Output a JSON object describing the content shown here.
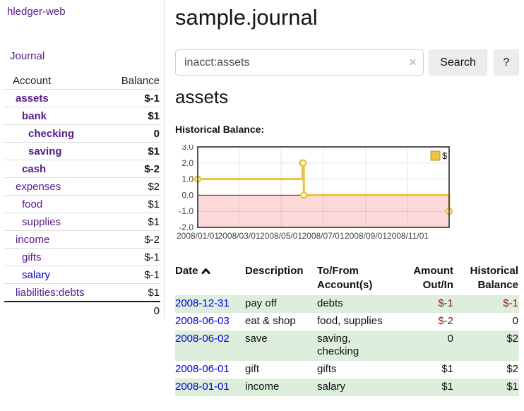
{
  "colors": {
    "purple_link": "#551a8b",
    "blue_link": "#0000dd",
    "negative_strong": "#8b1a1a",
    "negative_muted": "#b26b6b",
    "row_highlight": "#ddeedd",
    "chart_line": "#edc240",
    "chart_negative_region": "#fcdada",
    "chart_zero_line": "#8b0000",
    "chart_border": "#545454"
  },
  "sidebar": {
    "title": "hledger-web",
    "journal_label": "Journal",
    "accounts_table": {
      "headers": {
        "account": "Account",
        "balance": "Balance"
      },
      "rows": [
        {
          "name": "assets",
          "depth": 1,
          "bold": true,
          "balance": "$-1",
          "balance_style": "neg-strong",
          "link": "purple"
        },
        {
          "name": "bank",
          "depth": 2,
          "bold": true,
          "balance": "$1",
          "balance_style": "pos",
          "link": "purple"
        },
        {
          "name": "checking",
          "depth": 3,
          "bold": true,
          "balance": "0",
          "balance_style": "pos",
          "link": "purple"
        },
        {
          "name": "saving",
          "depth": 3,
          "bold": true,
          "balance": "$1",
          "balance_style": "pos",
          "link": "purple"
        },
        {
          "name": "cash",
          "depth": 2,
          "bold": true,
          "balance": "$-2",
          "balance_style": "neg-strong",
          "link": "purple"
        },
        {
          "name": "expenses",
          "depth": 1,
          "bold": false,
          "balance": "$2",
          "balance_style": "pos",
          "link": "purple"
        },
        {
          "name": "food",
          "depth": 2,
          "bold": false,
          "balance": "$1",
          "balance_style": "pos",
          "link": "purple"
        },
        {
          "name": "supplies",
          "depth": 2,
          "bold": false,
          "balance": "$1",
          "balance_style": "pos",
          "link": "purple"
        },
        {
          "name": "income",
          "depth": 1,
          "bold": false,
          "balance": "$-2",
          "balance_style": "neg-muted",
          "link": "purple"
        },
        {
          "name": "gifts",
          "depth": 2,
          "bold": false,
          "balance": "$-1",
          "balance_style": "neg-muted",
          "link": "purple"
        },
        {
          "name": "salary",
          "depth": 2,
          "bold": false,
          "balance": "$-1",
          "balance_style": "neg-muted",
          "link": "blue"
        },
        {
          "name": "liabilities:debts",
          "depth": 1,
          "bold": false,
          "balance": "$1",
          "balance_style": "pos",
          "link": "purple"
        }
      ],
      "total": "0"
    }
  },
  "header": {
    "title": "sample.journal"
  },
  "search": {
    "value": "inacct:assets",
    "clear_icon": "✕",
    "button_label": "Search",
    "help_label": "?"
  },
  "account_page": {
    "heading": "assets",
    "chart_label": "Historical Balance:"
  },
  "chart_data": {
    "type": "line",
    "title": "Historical Balance",
    "step": true,
    "series": [
      {
        "name": "$",
        "color": "#edc240",
        "points": [
          [
            "2008-01-01",
            1
          ],
          [
            "2008-06-01",
            2
          ],
          [
            "2008-06-02",
            2
          ],
          [
            "2008-06-03",
            0
          ],
          [
            "2008-12-31",
            -1
          ]
        ]
      }
    ],
    "xlim": [
      "2008-01-01",
      "2008-12-31"
    ],
    "ylim": [
      -2,
      3
    ],
    "x_ticks": [
      "2008/01/01",
      "2008/03/01",
      "2008/05/01",
      "2008/07/01",
      "2008/09/01",
      "2008/11/01"
    ],
    "y_ticks": [
      3.0,
      2.0,
      1.0,
      0.0,
      -1.0,
      -2.0
    ],
    "grid": true,
    "legend_position": "top-right",
    "negative_region": true
  },
  "register_table": {
    "columns": [
      "Date",
      "Description",
      "To/From Account(s)",
      "Amount Out/In",
      "Historical Balance"
    ],
    "sort": {
      "column": "Date",
      "direction": "asc"
    },
    "rows": [
      {
        "date": "2008-12-31",
        "description": "pay off",
        "accounts": "debts",
        "amount": "$-1",
        "amount_style": "neg",
        "balance": "$-1",
        "balance_style": "neg",
        "highlight": true
      },
      {
        "date": "2008-06-03",
        "description": "eat & shop",
        "accounts": "food, supplies",
        "amount": "$-2",
        "amount_style": "neg",
        "balance": "0",
        "balance_style": "pos",
        "highlight": false
      },
      {
        "date": "2008-06-02",
        "description": "save",
        "accounts": "saving,\nchecking",
        "amount": "0",
        "amount_style": "pos",
        "balance": "$2",
        "balance_style": "pos",
        "highlight": true
      },
      {
        "date": "2008-06-01",
        "description": "gift",
        "accounts": "gifts",
        "amount": "$1",
        "amount_style": "pos",
        "balance": "$2",
        "balance_style": "pos",
        "highlight": false
      },
      {
        "date": "2008-01-01",
        "description": "income",
        "accounts": "salary",
        "amount": "$1",
        "amount_style": "pos",
        "balance": "$1",
        "balance_style": "pos",
        "highlight": true
      }
    ]
  }
}
